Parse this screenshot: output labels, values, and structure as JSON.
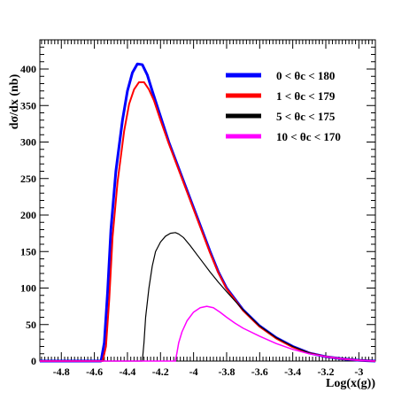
{
  "chart_data": {
    "type": "line",
    "title": "",
    "xlabel": "Log(x(g))",
    "ylabel": "dσ/dx (nb)",
    "xlim": [
      -4.93,
      -2.9
    ],
    "ylim": [
      0,
      440
    ],
    "xticks": [
      -4.8,
      -4.6,
      -4.4,
      -4.2,
      -4.0,
      -3.8,
      -3.6,
      -3.4,
      -3.2,
      -3.0
    ],
    "xtick_labels": [
      "-4.8",
      "-4.6",
      "-4.4",
      "-4.2",
      "-4",
      "-3.8",
      "-3.6",
      "-3.4",
      "-3.2",
      "-3"
    ],
    "yticks": [
      0,
      50,
      100,
      150,
      200,
      250,
      300,
      350,
      400
    ],
    "ytick_labels": [
      "0",
      "50",
      "100",
      "150",
      "200",
      "250",
      "300",
      "350",
      "400"
    ],
    "grid": false,
    "legend_position": "top-right",
    "series": [
      {
        "name": "0 < θc < 180",
        "color": "#0000ff",
        "x": [
          -4.93,
          -4.56,
          -4.54,
          -4.52,
          -4.5,
          -4.47,
          -4.43,
          -4.4,
          -4.37,
          -4.34,
          -4.31,
          -4.28,
          -4.25,
          -4.2,
          -4.15,
          -4.1,
          -4.05,
          -4.0,
          -3.95,
          -3.9,
          -3.85,
          -3.8,
          -3.7,
          -3.6,
          -3.5,
          -3.4,
          -3.3,
          -3.2,
          -3.1,
          -3.0,
          -2.95,
          -2.9
        ],
        "y": [
          0,
          0,
          25,
          95,
          180,
          260,
          330,
          370,
          395,
          407,
          406,
          392,
          370,
          335,
          300,
          270,
          240,
          210,
          180,
          150,
          122,
          100,
          70,
          48,
          32,
          20,
          11,
          6,
          3,
          1,
          0.5,
          0
        ]
      },
      {
        "name": "1 < θc < 179",
        "color": "#ff0000",
        "x": [
          -4.93,
          -4.55,
          -4.53,
          -4.51,
          -4.49,
          -4.46,
          -4.42,
          -4.39,
          -4.36,
          -4.33,
          -4.3,
          -4.27,
          -4.24,
          -4.2,
          -4.15,
          -4.1,
          -4.05,
          -4.0,
          -3.95,
          -3.9,
          -3.85,
          -3.8,
          -3.7,
          -3.6,
          -3.5,
          -3.4,
          -3.3,
          -3.2,
          -3.1,
          -3.0,
          -2.95,
          -2.9
        ],
        "y": [
          0,
          0,
          20,
          85,
          170,
          245,
          315,
          352,
          372,
          382,
          382,
          372,
          357,
          330,
          298,
          268,
          238,
          208,
          178,
          148,
          121,
          99,
          69,
          47,
          31,
          19,
          11,
          6,
          3,
          1,
          0.5,
          0
        ]
      },
      {
        "name": "5 < θc < 175",
        "color": "#000000",
        "x": [
          -4.93,
          -4.31,
          -4.3,
          -4.29,
          -4.27,
          -4.25,
          -4.23,
          -4.2,
          -4.17,
          -4.14,
          -4.11,
          -4.09,
          -4.06,
          -4.02,
          -3.98,
          -3.94,
          -3.9,
          -3.85,
          -3.8,
          -3.7,
          -3.6,
          -3.5,
          -3.4,
          -3.3,
          -3.2,
          -3.1,
          -3.0,
          -2.95,
          -2.9
        ],
        "y": [
          0,
          0,
          25,
          60,
          100,
          130,
          150,
          163,
          171,
          175,
          176,
          174,
          169,
          158,
          146,
          134,
          122,
          108,
          95,
          70,
          48,
          32,
          20,
          11,
          6,
          3,
          1,
          0.5,
          0
        ]
      },
      {
        "name": "10 < θc < 170",
        "color": "#ff00ff",
        "x": [
          -4.93,
          -4.11,
          -4.1,
          -4.09,
          -4.07,
          -4.04,
          -4.0,
          -3.96,
          -3.92,
          -3.88,
          -3.84,
          -3.8,
          -3.75,
          -3.7,
          -3.6,
          -3.5,
          -3.4,
          -3.3,
          -3.2,
          -3.1,
          -3.0,
          -2.95,
          -2.9
        ],
        "y": [
          0,
          0,
          12,
          25,
          40,
          55,
          67,
          73,
          75,
          73,
          67,
          60,
          52,
          45,
          34,
          24,
          16,
          10,
          6,
          3,
          1,
          0.5,
          0
        ]
      }
    ]
  }
}
